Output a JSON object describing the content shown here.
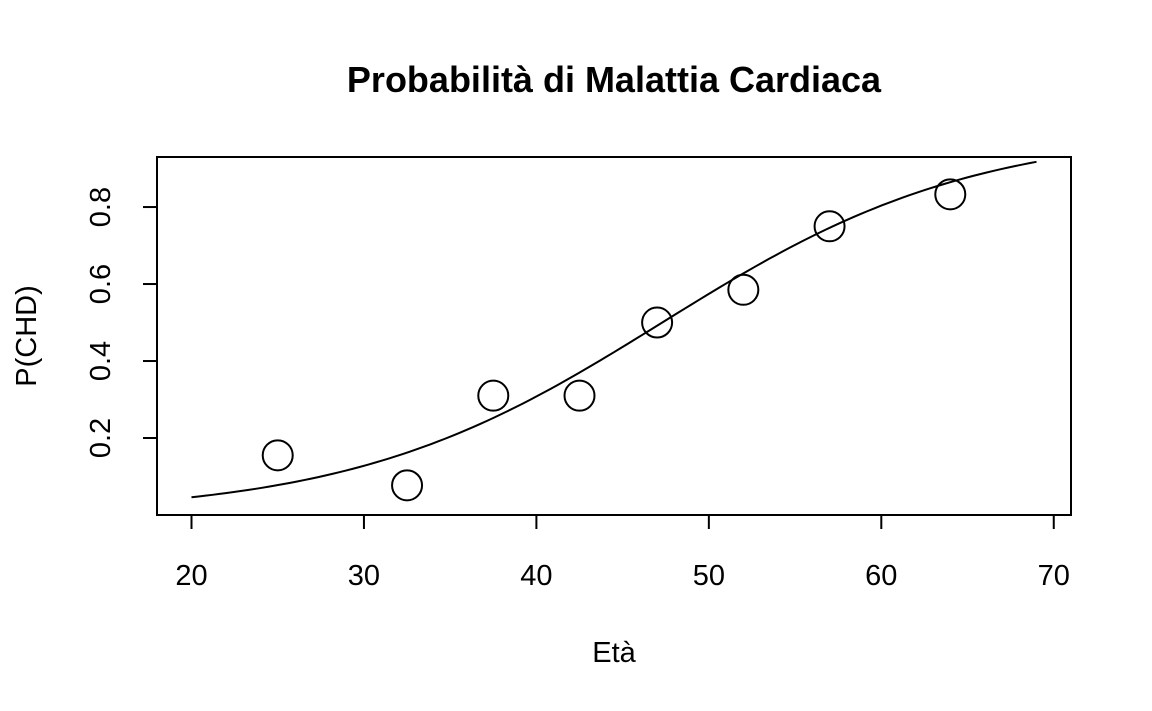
{
  "chart_data": {
    "type": "scatter",
    "title": "Probabilità di Malattia Cardiaca",
    "xlabel": "Età",
    "ylabel": "P(CHD)",
    "xlim": [
      18,
      71
    ],
    "ylim": [
      0.0,
      0.93
    ],
    "x_ticks": [
      20,
      30,
      40,
      50,
      60,
      70
    ],
    "y_ticks": [
      0.2,
      0.4,
      0.6,
      0.8
    ],
    "x_tick_labels": [
      "20",
      "30",
      "40",
      "50",
      "60",
      "70"
    ],
    "y_tick_labels": [
      "0.2",
      "0.4",
      "0.6",
      "0.8"
    ],
    "grid": false,
    "points": {
      "x": [
        25,
        32.5,
        37.5,
        42.5,
        47,
        52,
        57,
        64
      ],
      "y": [
        0.155,
        0.077,
        0.31,
        0.31,
        0.5,
        0.585,
        0.75,
        0.833
      ]
    },
    "fitted_curve": {
      "model": "logistic",
      "intercept": -5.25,
      "slope": 0.111,
      "x_range": [
        20,
        69
      ]
    }
  }
}
